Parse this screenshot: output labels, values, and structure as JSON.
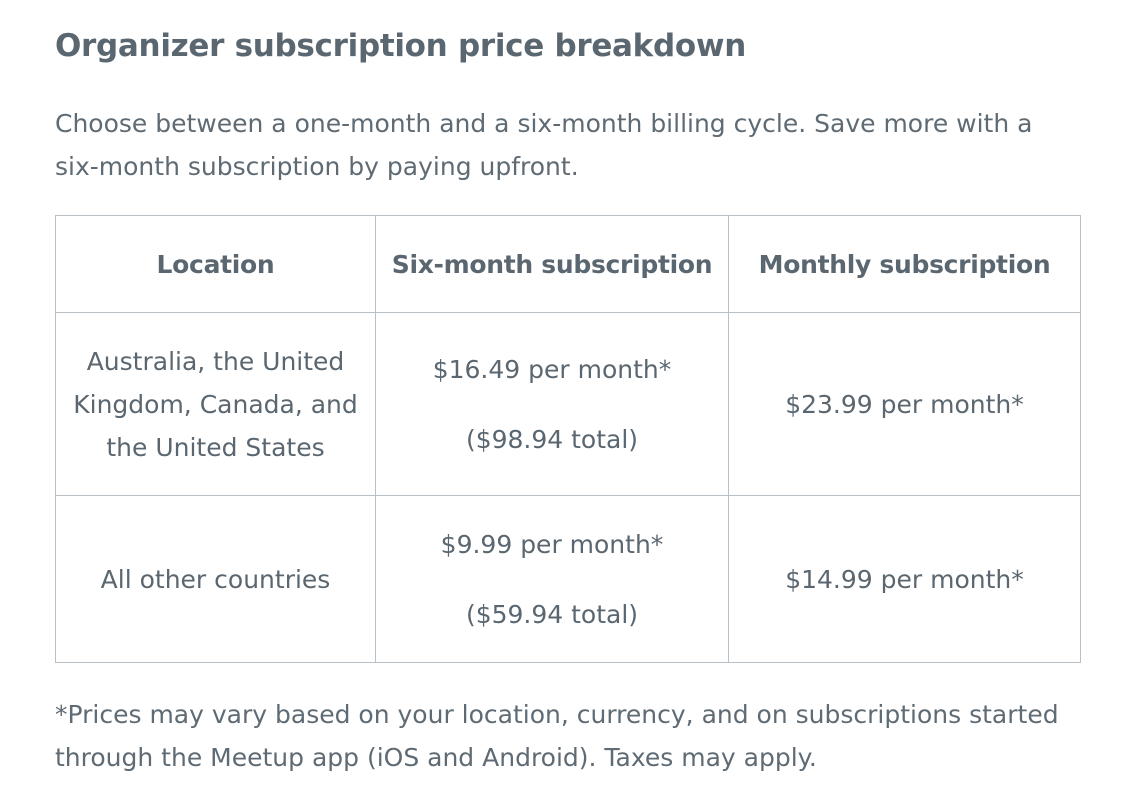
{
  "heading": "Organizer subscription price breakdown",
  "intro": "Choose between a one-month and a six-month billing cycle. Save more with a six-month subscription by paying upfront.",
  "table": {
    "headers": [
      "Location",
      "Six-month subscription",
      "Monthly subscription"
    ],
    "rows": [
      {
        "location": "Australia, the United Kingdom, Canada, and the United States",
        "six_month_price": "$16.49 per month*",
        "six_month_total": "($98.94 total)",
        "monthly_price": "$23.99 per month*"
      },
      {
        "location": "All other countries",
        "six_month_price": "$9.99 per month*",
        "six_month_total": "($59.94 total)",
        "monthly_price": "$14.99 per month*"
      }
    ]
  },
  "footnote": "*Prices may vary based on your location, currency, and on subscriptions started through the Meetup app (iOS and Android). Taxes may apply."
}
